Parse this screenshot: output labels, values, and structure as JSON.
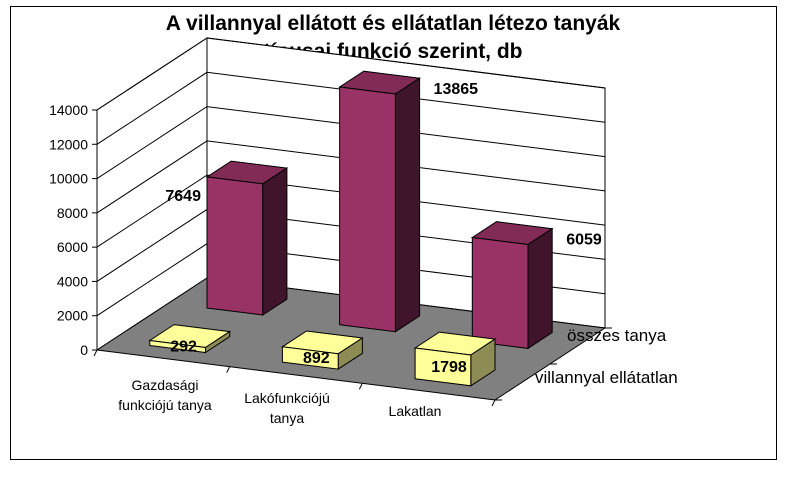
{
  "chart_data": {
    "type": "bar",
    "title_lines": [
      "A villannyal ellátott és ellátatlan létezo tanyák",
      "típusai funkció szerint, db"
    ],
    "categories": [
      [
        "Gazdasági",
        "funkciójú tanya"
      ],
      [
        "Lakófunkciójú",
        "tanya"
      ],
      [
        "Lakatlan"
      ]
    ],
    "series": [
      {
        "name": "villannyal ellátatlan",
        "values": [
          292,
          892,
          1798
        ],
        "color": "#ffff99"
      },
      {
        "name": "összes tanya",
        "values": [
          7649,
          13865,
          6059
        ],
        "color": "#993366"
      }
    ],
    "y_ticks": [
      "0",
      "2000",
      "4000",
      "6000",
      "8000",
      "10000",
      "12000",
      "14000"
    ],
    "ylim": [
      0,
      14000
    ],
    "grid": true,
    "style": "3d-clustered-depth"
  }
}
